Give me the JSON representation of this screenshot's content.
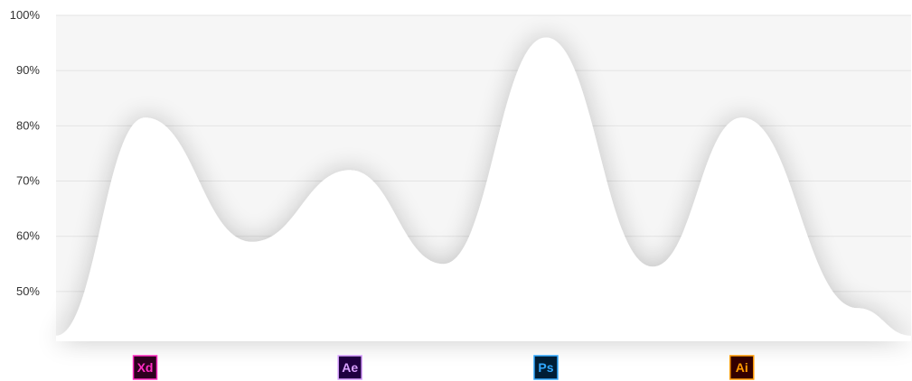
{
  "chart_data": {
    "type": "area",
    "title": "",
    "xlabel": "",
    "ylabel": "",
    "ylim": [
      41,
      100
    ],
    "y_ticks": [
      50,
      60,
      70,
      80,
      90,
      100
    ],
    "y_tick_labels": [
      "50%",
      "60%",
      "70%",
      "80%",
      "90%",
      "100%"
    ],
    "grid": true,
    "profile": [
      {
        "x": 0.0,
        "y": 42
      },
      {
        "x": 1.0,
        "y": 81.5
      },
      {
        "x": 2.2,
        "y": 59
      },
      {
        "x": 3.3,
        "y": 72
      },
      {
        "x": 4.35,
        "y": 55
      },
      {
        "x": 5.5,
        "y": 96
      },
      {
        "x": 6.7,
        "y": 54.5
      },
      {
        "x": 7.7,
        "y": 81.5
      },
      {
        "x": 9.0,
        "y": 47
      },
      {
        "x": 9.6,
        "y": 42
      }
    ],
    "xlim": [
      0,
      9.6
    ],
    "categories": [
      {
        "label": "Xd",
        "x": 1.0,
        "value": 81.5,
        "bg": "#2e001f",
        "fg": "#ff2bc2",
        "icon": "adobe-xd-icon"
      },
      {
        "label": "Ae",
        "x": 3.3,
        "value": 72,
        "bg": "#1f0040",
        "fg": "#d8a1ff",
        "icon": "adobe-after-effects-icon"
      },
      {
        "label": "Ps",
        "x": 5.5,
        "value": 96,
        "bg": "#001e36",
        "fg": "#31a8ff",
        "icon": "adobe-photoshop-icon"
      },
      {
        "label": "Ai",
        "x": 7.7,
        "value": 81.5,
        "bg": "#330000",
        "fg": "#ff9a00",
        "icon": "adobe-illustrator-icon"
      }
    ]
  },
  "colors": {
    "plot_background": "#f6f6f6",
    "area_fill": "#ffffff",
    "grid": "#e4e4e4",
    "tick_text": "#333333"
  }
}
